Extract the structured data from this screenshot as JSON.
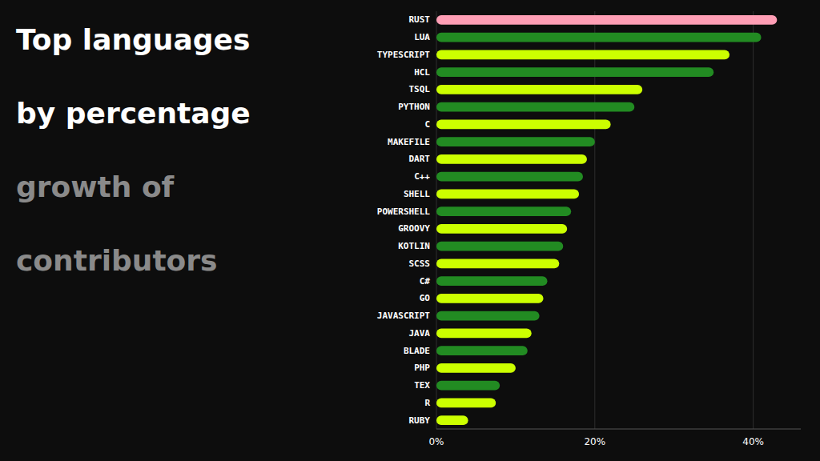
{
  "chart_data": {
    "type": "bar",
    "orientation": "horizontal",
    "title": [
      "Top languages",
      "by percentage"
    ],
    "subtitle": [
      "growth of",
      "contributors"
    ],
    "categories": [
      "RUST",
      "LUA",
      "TYPESCRIPT",
      "HCL",
      "TSQL",
      "PYTHON",
      "C",
      "MAKEFILE",
      "DART",
      "C++",
      "SHELL",
      "POWERSHELL",
      "GROOVY",
      "KOTLIN",
      "SCSS",
      "C#",
      "GO",
      "JAVASCRIPT",
      "JAVA",
      "BLADE",
      "PHP",
      "TEX",
      "R",
      "RUBY"
    ],
    "values": [
      43,
      41,
      37,
      35,
      26,
      25,
      22,
      20,
      19,
      18.5,
      18,
      17,
      16.5,
      16,
      15.5,
      14,
      13.5,
      13,
      12,
      11.5,
      10,
      8,
      7.5,
      4
    ],
    "colors": [
      "#ff9eb5",
      "#228B22",
      "#ccff00",
      "#228B22",
      "#ccff00",
      "#228B22",
      "#ccff00",
      "#228B22",
      "#ccff00",
      "#228B22",
      "#ccff00",
      "#228B22",
      "#ccff00",
      "#228B22",
      "#ccff00",
      "#228B22",
      "#ccff00",
      "#228B22",
      "#ccff00",
      "#228B22",
      "#ccff00",
      "#228B22",
      "#ccff00",
      "#ccff00"
    ],
    "xlim": [
      0,
      46
    ],
    "xticks": [
      {
        "value": 0,
        "label": "0%"
      },
      {
        "value": 20,
        "label": "20%"
      },
      {
        "value": 40,
        "label": "40%"
      }
    ],
    "grid": true
  }
}
